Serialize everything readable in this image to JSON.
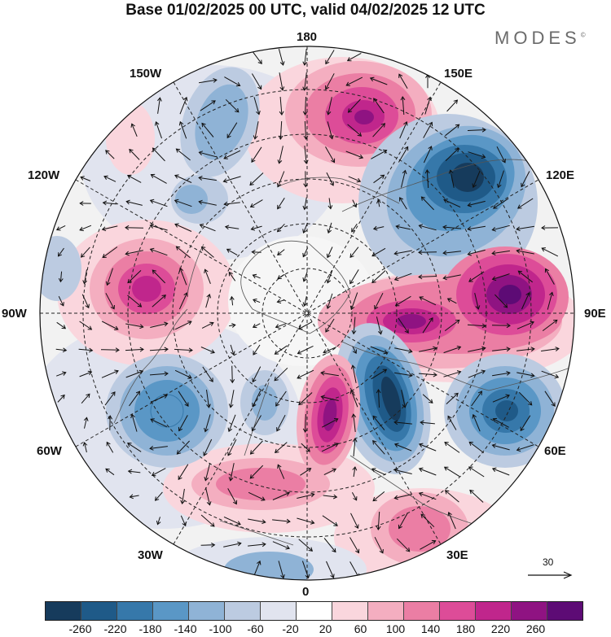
{
  "title": "Base 01/02/2025 00 UTC, valid 04/02/2025 12 UTC",
  "brand": "MODES",
  "brand_mark": "©",
  "longitude_labels": {
    "n180": "180",
    "e150": "150E",
    "e120": "120E",
    "e90": "90E",
    "e60": "60E",
    "e30": "30E",
    "n0": "0",
    "w30": "30W",
    "w60": "60W",
    "w90": "90W",
    "w120": "120W",
    "w150": "150W"
  },
  "reference_vector": {
    "label": "30"
  },
  "colorbar": {
    "colors": [
      "#163b5c",
      "#1f5a88",
      "#3678aa",
      "#5a97c6",
      "#8fb3d6",
      "#bccbe1",
      "#e1e4ef",
      "#ffffff",
      "#fad6dd",
      "#f4aec0",
      "#eb7ea4",
      "#dd4c98",
      "#c0268c",
      "#8f1382",
      "#5d0b75"
    ],
    "ticks": [
      "-260",
      "-220",
      "-180",
      "-140",
      "-100",
      "-60",
      "-20",
      "20",
      "60",
      "100",
      "140",
      "180",
      "220",
      "260"
    ]
  },
  "anomaly_centers": [
    {
      "region": "north of 150E",
      "sign": "positive",
      "value": 240
    },
    {
      "region": "120E",
      "sign": "negative",
      "value": -230
    },
    {
      "region": "90E",
      "sign": "positive",
      "value": 270
    },
    {
      "region": "east of 0",
      "sign": "negative",
      "value": -240
    },
    {
      "region": "near 0",
      "sign": "positive",
      "value": 210
    },
    {
      "region": "60E",
      "sign": "negative",
      "value": -180
    },
    {
      "region": "90W",
      "sign": "positive",
      "value": 200
    },
    {
      "region": "60W",
      "sign": "negative",
      "value": -150
    },
    {
      "region": "150W",
      "sign": "negative",
      "value": -110
    },
    {
      "region": "30E",
      "sign": "positive",
      "value": 110
    },
    {
      "region": "south of 60W",
      "sign": "positive",
      "value": 120
    }
  ]
}
